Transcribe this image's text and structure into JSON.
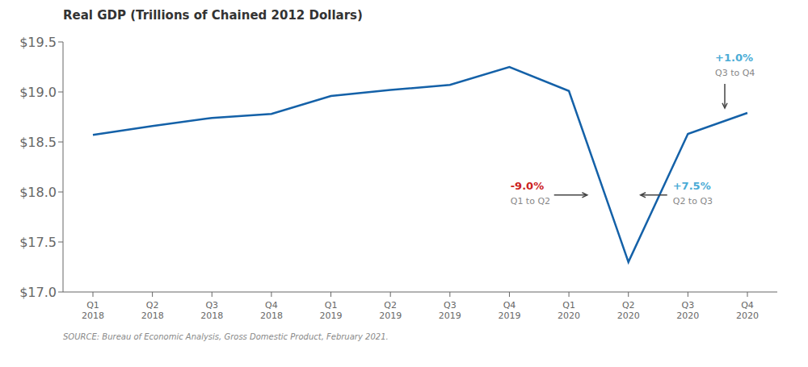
{
  "chart_data": {
    "type": "line",
    "title": "Real GDP (Trillions of Chained 2012 Dollars)",
    "source": "SOURCE: Bureau of Economic Analysis, Gross Domestic Product, February 2021.",
    "categories": [
      "Q1\n2018",
      "Q2\n2018",
      "Q3\n2018",
      "Q4\n2018",
      "Q1\n2019",
      "Q2\n2019",
      "Q3\n2019",
      "Q4\n2019",
      "Q1\n2020",
      "Q2\n2020",
      "Q3\n2020",
      "Q4\n2020"
    ],
    "values": [
      18.57,
      18.66,
      18.74,
      18.78,
      18.96,
      19.02,
      19.07,
      19.25,
      19.01,
      17.3,
      18.58,
      18.79
    ],
    "color": "#1461a8",
    "ylim": [
      17.0,
      19.5
    ],
    "yticks": [
      {
        "value": 17.0,
        "label": "$17.0"
      },
      {
        "value": 17.5,
        "label": "$17.5"
      },
      {
        "value": 18.0,
        "label": "$18.0"
      },
      {
        "value": 18.5,
        "label": "$18.5"
      },
      {
        "value": 19.0,
        "label": "$19.0"
      },
      {
        "value": 19.5,
        "label": "$19.5"
      }
    ],
    "grid": false,
    "annotations": [
      {
        "text": "-9.0%",
        "label": "Q1 to Q2",
        "color": "#cc2222"
      },
      {
        "text": "+7.5%",
        "label": "Q2 to Q3",
        "color": "#4bacd6"
      },
      {
        "text": "+1.0%",
        "label": "Q3 to Q4",
        "color": "#4bacd6"
      }
    ]
  }
}
